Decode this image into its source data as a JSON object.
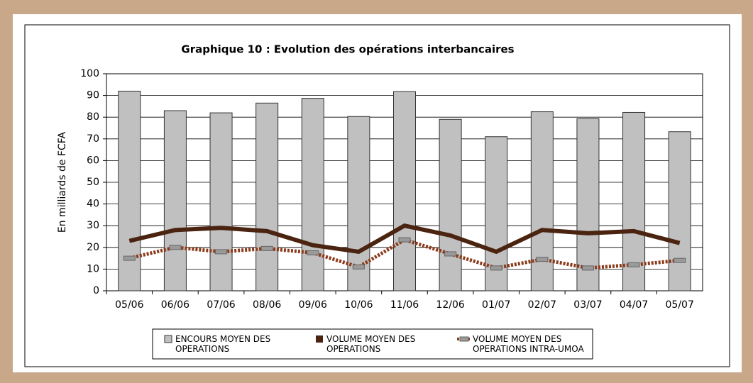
{
  "chart_data": {
    "type": "bar_line",
    "title": "Graphique 10 : Evolution des opérations interbancaires",
    "ylabel": "En milliards de FCFA",
    "categories": [
      "05/06",
      "06/06",
      "07/06",
      "08/06",
      "09/06",
      "10/06",
      "11/06",
      "12/06",
      "01/07",
      "02/07",
      "03/07",
      "04/07",
      "05/07"
    ],
    "ylim": [
      0,
      100
    ],
    "yticks": [
      0,
      10,
      20,
      30,
      40,
      50,
      60,
      70,
      80,
      90,
      100
    ],
    "grid": true,
    "series": [
      {
        "name": "ENCOURS MOYEN DES OPERATIONS",
        "type": "bar",
        "color": "#c0c0c0",
        "values": [
          92,
          83,
          82,
          86.5,
          88.7,
          80.3,
          91.8,
          79,
          71,
          82.5,
          79.3,
          82.2,
          73.3
        ]
      },
      {
        "name": "VOLUME MOYEN DES OPERATIONS",
        "type": "line",
        "color": "#4a2410",
        "values": [
          23,
          28,
          29,
          27.5,
          21,
          18,
          30,
          25.5,
          18,
          28,
          26.5,
          27.5,
          22
        ]
      },
      {
        "name": "VOLUME MOYEN DES OPERATIONS INTRA-UMOA",
        "type": "dashed",
        "color": "#8b3a1a",
        "values": [
          15,
          20,
          18,
          19.5,
          17.5,
          11,
          23.5,
          17,
          10.5,
          14.5,
          10.5,
          12,
          14
        ]
      }
    ]
  }
}
